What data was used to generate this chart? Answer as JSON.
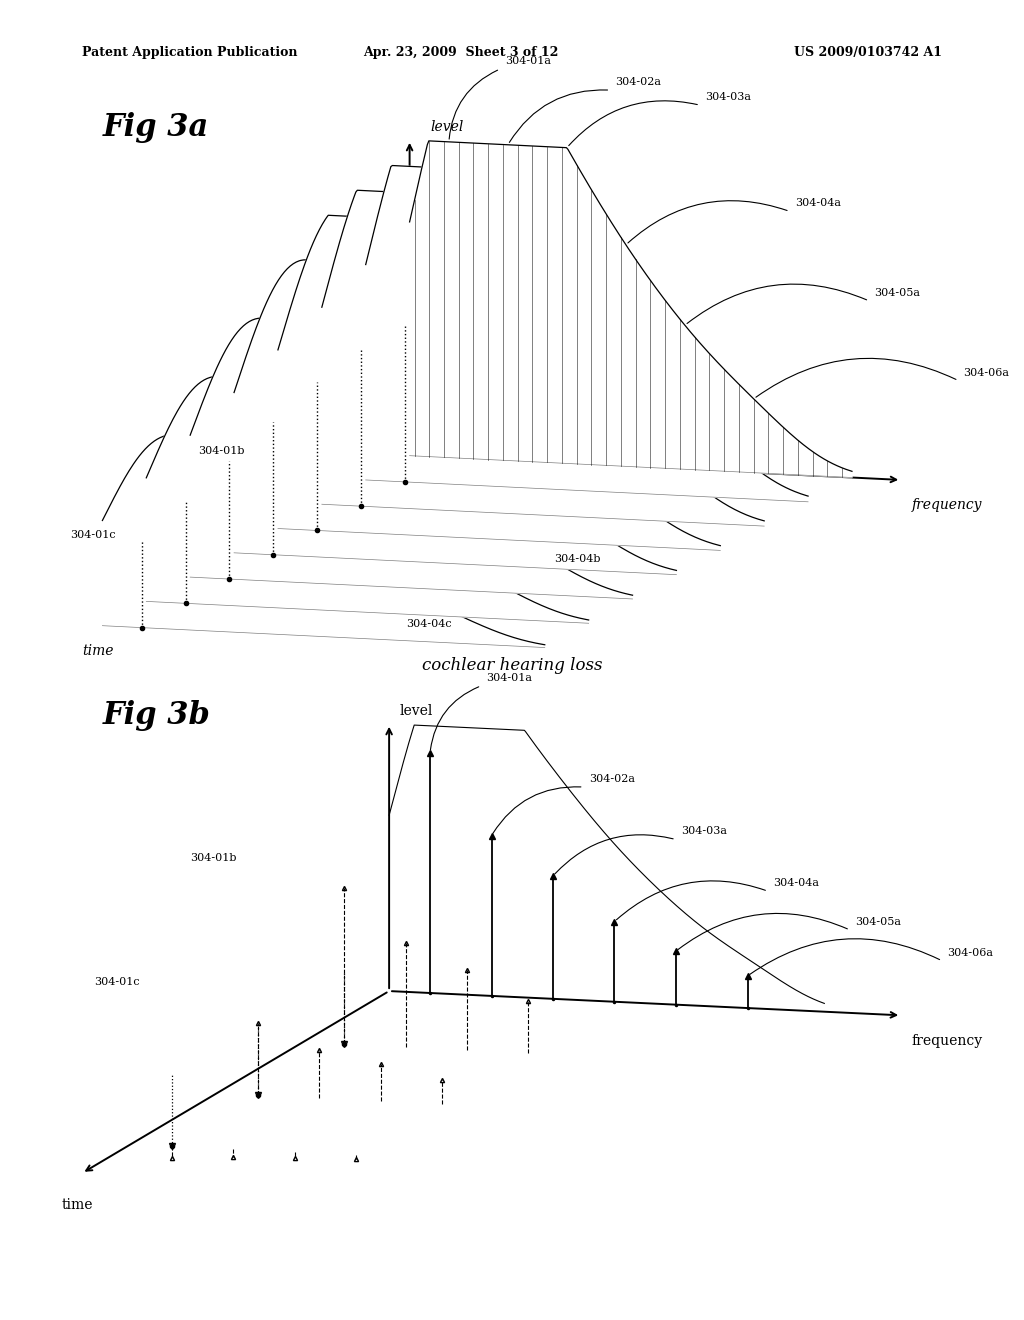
{
  "background_color": "#ffffff",
  "header_left": "Patent Application Publication",
  "header_mid": "Apr. 23, 2009  Sheet 3 of 12",
  "header_right": "US 2009/0103742 A1",
  "fig3a_title": "Fig 3a",
  "fig3b_title": "Fig 3b",
  "caption_3a": "cochlear hearing loss",
  "label_level_italic": true,
  "label_freq_italic": true,
  "label_time_italic": true
}
